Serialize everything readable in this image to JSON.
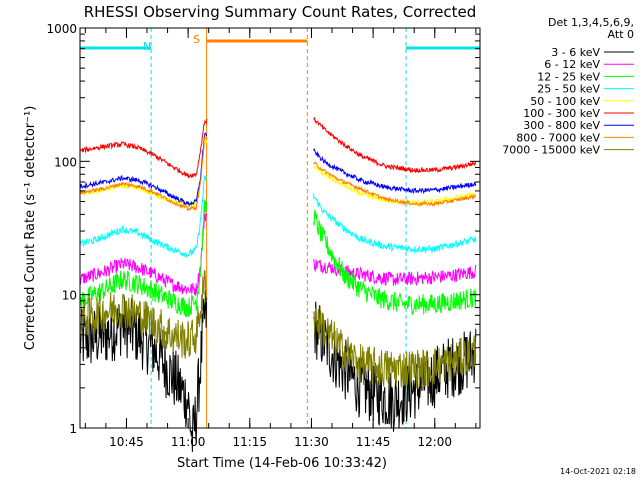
{
  "chart_data": {
    "type": "line",
    "title": "RHESSI Observing Summary Count Rates, Corrected",
    "ylabel": "Corrected Count Rate (s⁻¹ detector⁻¹)",
    "xlabel": "Start Time (14-Feb-06 10:33:42)",
    "x_start": "10:33:42",
    "x_end": "12:11:00",
    "y_scale": "log",
    "ylim": [
      1,
      1000
    ],
    "x_ticks": [
      "10:45",
      "11:00",
      "11:15",
      "11:30",
      "11:45",
      "12:00"
    ],
    "y_ticks": [
      "1",
      "10",
      "100",
      "1000"
    ],
    "legend_header": [
      "Det 1,3,4,5,6,9,",
      "Att 0"
    ],
    "legend_position": "right",
    "timestamp": "14-Oct-2021 02:18",
    "annotations": [
      {
        "label": "N",
        "type": "night",
        "color": "#00e5e5",
        "start": "10:33:42",
        "end": "10:51:00"
      },
      {
        "label": "S",
        "type": "saa",
        "color": "#ff8000",
        "start": "11:04:30",
        "end": "11:29:00"
      },
      {
        "label": "",
        "type": "night",
        "color": "#00e5e5",
        "start": "11:53:00",
        "end": "12:11:00"
      }
    ],
    "gap": [
      "11:04:30",
      "11:30:30"
    ],
    "series": [
      {
        "name": "3 - 6 keV",
        "color": "#000000",
        "noise": 0.55,
        "points": [
          [
            "10:33:42",
            4.5
          ],
          [
            "10:40",
            5.0
          ],
          [
            "10:44",
            6.0
          ],
          [
            "10:48",
            5.0
          ],
          [
            "10:52",
            3.8
          ],
          [
            "10:56",
            2.5
          ],
          [
            "11:00",
            1.6
          ],
          [
            "11:01",
            0.8
          ],
          [
            "11:02",
            1.3
          ],
          [
            "11:03",
            3.0
          ],
          [
            "11:04",
            7.0
          ],
          [
            "11:30:30",
            6.0
          ],
          [
            "11:33",
            4.5
          ],
          [
            "11:37",
            3.0
          ],
          [
            "11:42",
            2.0
          ],
          [
            "11:50",
            1.6
          ],
          [
            "11:58",
            2.2
          ],
          [
            "12:03",
            2.8
          ],
          [
            "12:08",
            3.2
          ],
          [
            "12:10",
            3.8
          ]
        ]
      },
      {
        "name": "6 - 12 keV",
        "color": "#ff00ff",
        "noise": 0.12,
        "points": [
          [
            "10:33:42",
            13
          ],
          [
            "10:40",
            15
          ],
          [
            "10:44",
            17
          ],
          [
            "10:48",
            16
          ],
          [
            "10:52",
            14
          ],
          [
            "10:56",
            12
          ],
          [
            "11:00",
            11
          ],
          [
            "11:02",
            11
          ],
          [
            "11:03",
            16
          ],
          [
            "11:04",
            40
          ],
          [
            "11:30:30",
            17
          ],
          [
            "11:35",
            16
          ],
          [
            "11:40",
            14.5
          ],
          [
            "11:50",
            13
          ],
          [
            "12:00",
            13.5
          ],
          [
            "12:05",
            14
          ],
          [
            "12:10",
            15
          ]
        ]
      },
      {
        "name": "12 - 25 keV",
        "color": "#00ff00",
        "noise": 0.18,
        "points": [
          [
            "10:33:42",
            9
          ],
          [
            "10:40",
            11
          ],
          [
            "10:44",
            13
          ],
          [
            "10:48",
            12
          ],
          [
            "10:52",
            10.5
          ],
          [
            "10:56",
            9
          ],
          [
            "11:00",
            8
          ],
          [
            "11:02",
            9
          ],
          [
            "11:03",
            15
          ],
          [
            "11:04",
            45
          ],
          [
            "11:30:30",
            40
          ],
          [
            "11:32",
            30
          ],
          [
            "11:35",
            20
          ],
          [
            "11:38",
            14
          ],
          [
            "11:42",
            11
          ],
          [
            "11:46",
            9.5
          ],
          [
            "11:52",
            8.5
          ],
          [
            "12:00",
            8.5
          ],
          [
            "12:05",
            9
          ],
          [
            "12:10",
            9.5
          ]
        ]
      },
      {
        "name": "25 - 50 keV",
        "color": "#00ffff",
        "noise": 0.06,
        "points": [
          [
            "10:33:42",
            24
          ],
          [
            "10:38",
            26
          ],
          [
            "10:44",
            31
          ],
          [
            "10:48",
            29
          ],
          [
            "10:52",
            25
          ],
          [
            "10:56",
            22
          ],
          [
            "11:00",
            20
          ],
          [
            "11:02",
            22
          ],
          [
            "11:03",
            35
          ],
          [
            "11:04",
            75
          ],
          [
            "11:30:30",
            55
          ],
          [
            "11:33",
            42
          ],
          [
            "11:37",
            33
          ],
          [
            "11:42",
            26
          ],
          [
            "11:48",
            23
          ],
          [
            "11:55",
            22
          ],
          [
            "12:00",
            22
          ],
          [
            "12:05",
            24
          ],
          [
            "12:10",
            26
          ]
        ]
      },
      {
        "name": "50 - 100 keV",
        "color": "#ffff00",
        "noise": 0.04,
        "points": [
          [
            "10:33:42",
            57
          ],
          [
            "10:40",
            62
          ],
          [
            "10:44",
            66
          ],
          [
            "10:48",
            63
          ],
          [
            "10:52",
            56
          ],
          [
            "10:56",
            50
          ],
          [
            "11:00",
            47
          ],
          [
            "11:02",
            48
          ],
          [
            "11:03",
            70
          ],
          [
            "11:04",
            140
          ],
          [
            "11:30:30",
            93
          ],
          [
            "11:33",
            80
          ],
          [
            "11:37",
            68
          ],
          [
            "11:42",
            57
          ],
          [
            "11:48",
            51
          ],
          [
            "11:55",
            49
          ],
          [
            "12:00",
            50
          ],
          [
            "12:05",
            53
          ],
          [
            "12:10",
            57
          ]
        ]
      },
      {
        "name": "100 - 300 keV",
        "color": "#ff0000",
        "noise": 0.04,
        "points": [
          [
            "10:33:42",
            120
          ],
          [
            "10:38",
            127
          ],
          [
            "10:44",
            135
          ],
          [
            "10:48",
            126
          ],
          [
            "10:52",
            110
          ],
          [
            "10:56",
            92
          ],
          [
            "11:00",
            78
          ],
          [
            "11:02",
            80
          ],
          [
            "11:03",
            120
          ],
          [
            "11:04",
            200
          ],
          [
            "11:30:30",
            210
          ],
          [
            "11:33",
            175
          ],
          [
            "11:37",
            140
          ],
          [
            "11:42",
            110
          ],
          [
            "11:48",
            92
          ],
          [
            "11:55",
            86
          ],
          [
            "12:00",
            86
          ],
          [
            "12:05",
            90
          ],
          [
            "12:10",
            97
          ]
        ]
      },
      {
        "name": "300 - 800 keV",
        "color": "#0000ff",
        "noise": 0.04,
        "points": [
          [
            "10:33:42",
            65
          ],
          [
            "10:40",
            70
          ],
          [
            "10:44",
            75
          ],
          [
            "10:48",
            72
          ],
          [
            "10:52",
            64
          ],
          [
            "10:56",
            55
          ],
          [
            "11:00",
            48
          ],
          [
            "11:02",
            50
          ],
          [
            "11:03",
            75
          ],
          [
            "11:04",
            160
          ],
          [
            "11:30:30",
            120
          ],
          [
            "11:33",
            100
          ],
          [
            "11:37",
            85
          ],
          [
            "11:42",
            72
          ],
          [
            "11:48",
            64
          ],
          [
            "11:55",
            60
          ],
          [
            "12:00",
            61
          ],
          [
            "12:05",
            64
          ],
          [
            "12:10",
            68
          ]
        ]
      },
      {
        "name": "800 - 7000 keV",
        "color": "#ff8000",
        "noise": 0.03,
        "points": [
          [
            "10:33:42",
            58
          ],
          [
            "10:40",
            63
          ],
          [
            "10:44",
            68
          ],
          [
            "10:48",
            65
          ],
          [
            "10:52",
            58
          ],
          [
            "10:56",
            50
          ],
          [
            "11:00",
            44
          ],
          [
            "11:02",
            45
          ],
          [
            "11:03",
            68
          ],
          [
            "11:04",
            150
          ],
          [
            "11:30:30",
            98
          ],
          [
            "11:33",
            85
          ],
          [
            "11:37",
            72
          ],
          [
            "11:42",
            62
          ],
          [
            "11:48",
            52
          ],
          [
            "11:55",
            48
          ],
          [
            "12:00",
            48
          ],
          [
            "12:05",
            51
          ],
          [
            "12:10",
            55
          ]
        ]
      },
      {
        "name": "7000 - 15000 keV",
        "color": "#808000",
        "noise": 0.35,
        "points": [
          [
            "10:33:42",
            6.5
          ],
          [
            "10:40",
            7.5
          ],
          [
            "10:44",
            8.0
          ],
          [
            "10:48",
            7.0
          ],
          [
            "10:52",
            6.0
          ],
          [
            "10:56",
            5.0
          ],
          [
            "11:00",
            4.5
          ],
          [
            "11:02",
            5.0
          ],
          [
            "11:03",
            8.0
          ],
          [
            "11:04",
            12.0
          ],
          [
            "11:30:30",
            7.0
          ],
          [
            "11:33",
            5.5
          ],
          [
            "11:37",
            4.0
          ],
          [
            "11:42",
            3.0
          ],
          [
            "11:48",
            2.8
          ],
          [
            "11:58",
            2.8
          ],
          [
            "12:05",
            3.2
          ],
          [
            "12:10",
            3.8
          ]
        ]
      }
    ]
  }
}
